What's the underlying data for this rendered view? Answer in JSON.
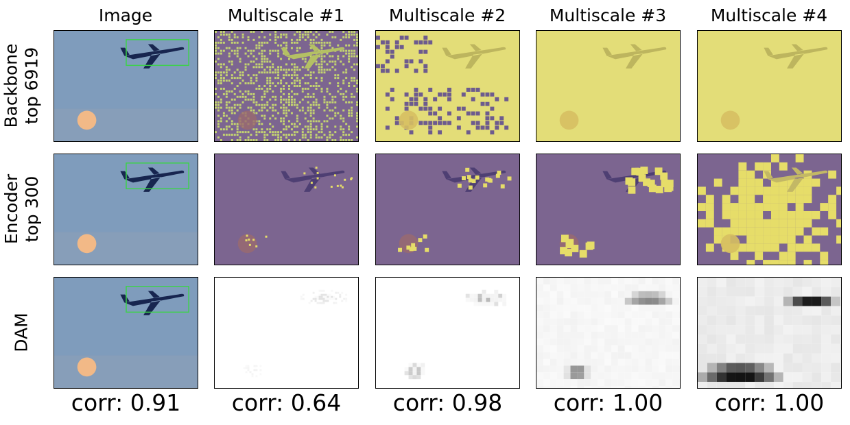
{
  "columns": [
    "Image",
    "Multiscale #1",
    "Multiscale #2",
    "Multiscale #3",
    "Multiscale #4"
  ],
  "rows": [
    {
      "line1": "Backbone",
      "line2": "top 6919"
    },
    {
      "line1": "Encoder",
      "line2": "top 300"
    },
    {
      "line1": "DAM",
      "line2": ""
    }
  ],
  "corr": [
    "corr: 0.91",
    "corr: 0.64",
    "corr: 0.98",
    "corr: 1.00",
    "corr: 1.00"
  ],
  "colors": {
    "sky": "#7f9cbc",
    "mask_yellow": "#e3dd78",
    "mask_purple": "#7c6590",
    "box_green": "#3dd24a"
  }
}
